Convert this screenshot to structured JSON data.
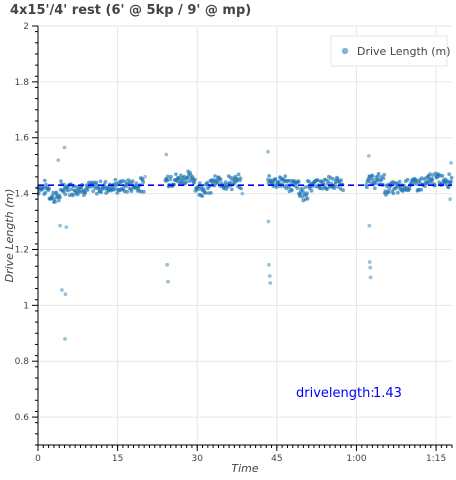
{
  "chart_data": {
    "type": "scatter",
    "title": "4x15'/4' rest (6' @ 5kp / 9' @ mp)",
    "xlabel": "Time",
    "ylabel": "Drive Length (m)",
    "xlim": [
      0,
      4680
    ],
    "ylim": [
      0.5,
      2.0
    ],
    "x_ticks": [
      {
        "value": 0,
        "label": "0"
      },
      {
        "value": 900,
        "label": "15"
      },
      {
        "value": 1800,
        "label": "30"
      },
      {
        "value": 2700,
        "label": "45"
      },
      {
        "value": 3600,
        "label": "1:00"
      },
      {
        "value": 4500,
        "label": "1:15"
      }
    ],
    "y_ticks": [
      {
        "value": 0.6,
        "label": "0.6"
      },
      {
        "value": 0.8,
        "label": "0.8"
      },
      {
        "value": 1.0,
        "label": "1"
      },
      {
        "value": 1.2,
        "label": "1.2"
      },
      {
        "value": 1.4,
        "label": "1.4"
      },
      {
        "value": 1.6,
        "label": "1.6"
      },
      {
        "value": 1.8,
        "label": "1.8"
      },
      {
        "value": 2.0,
        "label": "2"
      }
    ],
    "grid": true,
    "legend_position": "top-right",
    "series": [
      {
        "name": "Drive Length (m)",
        "color": "#1f77b4",
        "segments": [
          {
            "x_start": 0,
            "x_end": 130,
            "level": 1.42
          },
          {
            "x_start": 130,
            "x_end": 260,
            "level": 1.39
          },
          {
            "x_start": 260,
            "x_end": 700,
            "level": 1.42
          },
          {
            "x_start": 700,
            "x_end": 1000,
            "level": 1.425
          },
          {
            "x_start": 1000,
            "x_end": 1200,
            "level": 1.43
          },
          {
            "x_start": 1440,
            "x_end": 1620,
            "level": 1.45
          },
          {
            "x_start": 1620,
            "x_end": 1780,
            "level": 1.455
          },
          {
            "x_start": 1780,
            "x_end": 1960,
            "level": 1.42
          },
          {
            "x_start": 1960,
            "x_end": 2300,
            "level": 1.44
          },
          {
            "x_start": 2600,
            "x_end": 2800,
            "level": 1.445
          },
          {
            "x_start": 2800,
            "x_end": 2950,
            "level": 1.43
          },
          {
            "x_start": 2950,
            "x_end": 3050,
            "level": 1.4
          },
          {
            "x_start": 3050,
            "x_end": 3450,
            "level": 1.435
          },
          {
            "x_start": 3710,
            "x_end": 3920,
            "level": 1.445
          },
          {
            "x_start": 3920,
            "x_end": 4150,
            "level": 1.42
          },
          {
            "x_start": 4150,
            "x_end": 4410,
            "level": 1.435
          },
          {
            "x_start": 4410,
            "x_end": 4680,
            "level": 1.45
          }
        ],
        "outliers": [
          {
            "x": 230,
            "y": 1.52
          },
          {
            "x": 250,
            "y": 1.285
          },
          {
            "x": 270,
            "y": 1.055
          },
          {
            "x": 300,
            "y": 1.565
          },
          {
            "x": 305,
            "y": 0.88
          },
          {
            "x": 310,
            "y": 1.04
          },
          {
            "x": 320,
            "y": 1.28
          },
          {
            "x": 1450,
            "y": 1.54
          },
          {
            "x": 1460,
            "y": 1.145
          },
          {
            "x": 1470,
            "y": 1.085
          },
          {
            "x": 2600,
            "y": 1.55
          },
          {
            "x": 2605,
            "y": 1.3
          },
          {
            "x": 2610,
            "y": 1.145
          },
          {
            "x": 2620,
            "y": 1.105
          },
          {
            "x": 2625,
            "y": 1.08
          },
          {
            "x": 3740,
            "y": 1.535
          },
          {
            "x": 3745,
            "y": 1.285
          },
          {
            "x": 3750,
            "y": 1.155
          },
          {
            "x": 3755,
            "y": 1.135
          },
          {
            "x": 3760,
            "y": 1.1
          },
          {
            "x": 1210,
            "y": 1.46
          },
          {
            "x": 4670,
            "y": 1.51
          },
          {
            "x": 4660,
            "y": 1.38
          },
          {
            "x": 2310,
            "y": 1.4
          }
        ]
      }
    ],
    "reference_line": {
      "y": 1.43,
      "color": "#0000ff",
      "style": "dashed"
    },
    "annotation": {
      "label": "drivelength:",
      "value": "1.43",
      "color": "#0000ff"
    }
  }
}
